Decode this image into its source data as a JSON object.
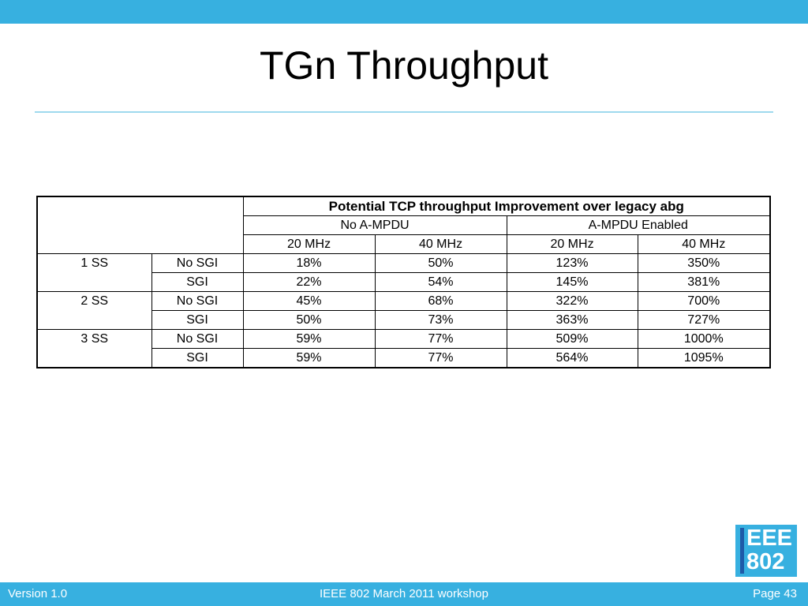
{
  "slide": {
    "title": "TGn Throughput"
  },
  "table": {
    "main_header": "Potential TCP throughput Improvement over legacy abg",
    "groups": [
      "No A-MPDU",
      "A-MPDU Enabled"
    ],
    "bandwidths": [
      "20 MHz",
      "40 MHz",
      "20 MHz",
      "40 MHz"
    ],
    "rows": [
      {
        "ss": "1 SS",
        "gi": "No SGI",
        "values": [
          "18%",
          "50%",
          "123%",
          "350%"
        ]
      },
      {
        "ss": "",
        "gi": "SGI",
        "values": [
          "22%",
          "54%",
          "145%",
          "381%"
        ]
      },
      {
        "ss": "2 SS",
        "gi": "No SGI",
        "values": [
          "45%",
          "68%",
          "322%",
          "700%"
        ]
      },
      {
        "ss": "",
        "gi": "SGI",
        "values": [
          "50%",
          "73%",
          "363%",
          "727%"
        ]
      },
      {
        "ss": "3 SS",
        "gi": "No SGI",
        "values": [
          "59%",
          "77%",
          "509%",
          "1000%"
        ]
      },
      {
        "ss": "",
        "gi": "SGI",
        "values": [
          "59%",
          "77%",
          "564%",
          "1095%"
        ]
      }
    ]
  },
  "logo": {
    "line1": "EEE",
    "line2": "802"
  },
  "footer": {
    "version": "Version 1.0",
    "event": "IEEE 802 March 2011 workshop",
    "page": "Page 43"
  },
  "colors": {
    "accent": "#37b0e0",
    "rule": "#9fd9ee",
    "logo_stripe": "#1e5aa8"
  }
}
